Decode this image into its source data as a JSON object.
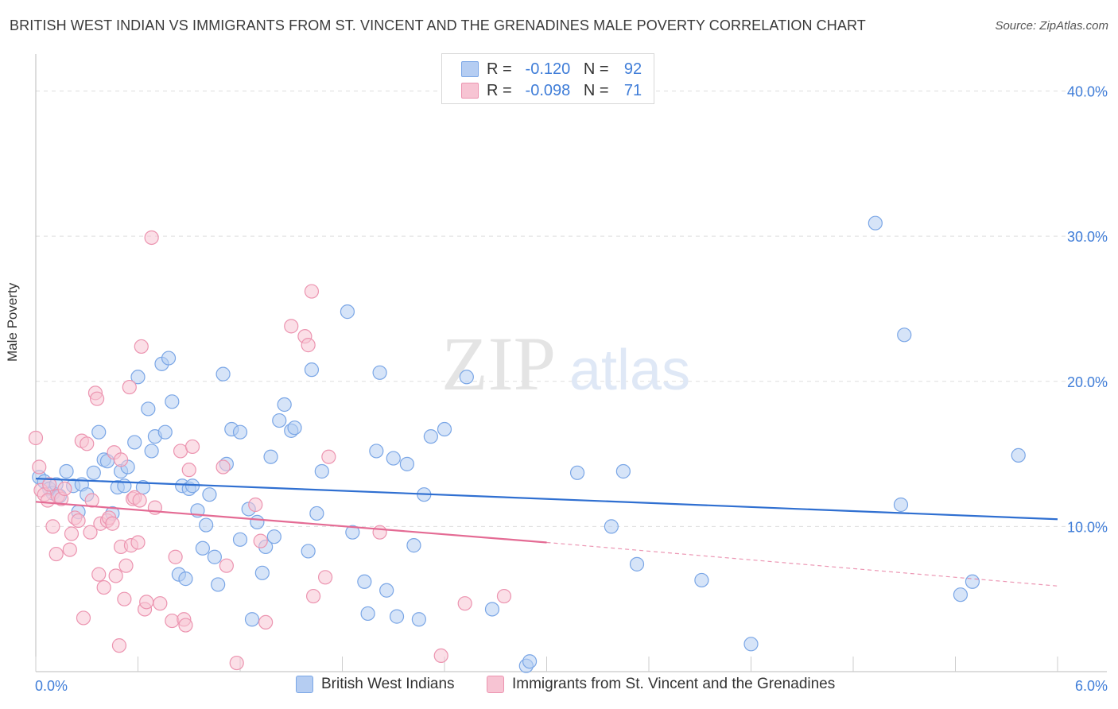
{
  "title": "BRITISH WEST INDIAN VS IMMIGRANTS FROM ST. VINCENT AND THE GRENADINES MALE POVERTY CORRELATION CHART",
  "source": "Source: ZipAtlas.com",
  "watermark": {
    "zip": "ZIP",
    "atlas": "atlas"
  },
  "legend_top": {
    "rows": [
      {
        "r_label": "R =",
        "r_value": "-0.120",
        "n_label": "N =",
        "n_value": "92"
      },
      {
        "r_label": "R =",
        "r_value": "-0.098",
        "n_label": "N =",
        "n_value": "71"
      }
    ]
  },
  "legend_bottom": {
    "items": [
      "British West Indians",
      "Immigrants from St. Vincent and the Grenadines"
    ]
  },
  "colors": {
    "blue_fill": "#b5cdf2",
    "blue_stroke": "#7aa6e6",
    "blue_line": "#2f6fd1",
    "pink_fill": "#f7c4d3",
    "pink_stroke": "#ec94b0",
    "pink_line": "#e46b94",
    "tick_text": "#3f7dd8"
  },
  "chart_data": {
    "type": "scatter",
    "title": "BRITISH WEST INDIAN VS IMMIGRANTS FROM ST. VINCENT AND THE GRENADINES MALE POVERTY CORRELATION CHART",
    "xlabel": "",
    "ylabel": "Male Poverty",
    "xlim": [
      0,
      6.0
    ],
    "ylim": [
      0,
      42
    ],
    "x_tick_labels": [
      "0.0%",
      "6.0%"
    ],
    "y_ticks": [
      10,
      20,
      30,
      40
    ],
    "y_tick_labels": [
      "10.0%",
      "20.0%",
      "30.0%",
      "40.0%"
    ],
    "grid": true,
    "legend": "top-center",
    "series": [
      {
        "name": "British West Indians",
        "r": -0.12,
        "n": 92,
        "trend": {
          "x": [
            0,
            6.0
          ],
          "y": [
            13.3,
            10.5
          ]
        },
        "points": [
          [
            0.02,
            13.4
          ],
          [
            0.05,
            13.1
          ],
          [
            0.08,
            12.6
          ],
          [
            0.1,
            12.3
          ],
          [
            0.12,
            12.9
          ],
          [
            0.14,
            12.1
          ],
          [
            0.18,
            13.8
          ],
          [
            0.22,
            12.8
          ],
          [
            0.25,
            11.0
          ],
          [
            0.27,
            12.9
          ],
          [
            0.3,
            12.2
          ],
          [
            0.34,
            13.7
          ],
          [
            0.37,
            16.5
          ],
          [
            0.4,
            14.6
          ],
          [
            0.42,
            14.5
          ],
          [
            0.45,
            10.9
          ],
          [
            0.48,
            12.7
          ],
          [
            0.5,
            13.8
          ],
          [
            0.52,
            12.8
          ],
          [
            0.54,
            14.1
          ],
          [
            0.58,
            15.8
          ],
          [
            0.6,
            20.3
          ],
          [
            0.63,
            12.7
          ],
          [
            0.66,
            18.1
          ],
          [
            0.68,
            15.2
          ],
          [
            0.7,
            16.2
          ],
          [
            0.74,
            21.2
          ],
          [
            0.76,
            16.5
          ],
          [
            0.78,
            21.6
          ],
          [
            0.8,
            18.6
          ],
          [
            0.84,
            6.7
          ],
          [
            0.86,
            12.8
          ],
          [
            0.88,
            6.4
          ],
          [
            0.9,
            12.6
          ],
          [
            0.92,
            12.8
          ],
          [
            0.95,
            11.1
          ],
          [
            0.98,
            8.5
          ],
          [
            1.0,
            10.1
          ],
          [
            1.02,
            12.2
          ],
          [
            1.05,
            7.9
          ],
          [
            1.07,
            6.0
          ],
          [
            1.1,
            20.5
          ],
          [
            1.12,
            14.3
          ],
          [
            1.15,
            16.7
          ],
          [
            1.2,
            16.5
          ],
          [
            1.2,
            9.1
          ],
          [
            1.25,
            11.2
          ],
          [
            1.27,
            3.6
          ],
          [
            1.3,
            10.3
          ],
          [
            1.33,
            6.8
          ],
          [
            1.35,
            8.6
          ],
          [
            1.38,
            14.8
          ],
          [
            1.4,
            9.3
          ],
          [
            1.43,
            17.3
          ],
          [
            1.46,
            18.4
          ],
          [
            1.5,
            16.6
          ],
          [
            1.52,
            16.8
          ],
          [
            1.6,
            8.3
          ],
          [
            1.62,
            20.8
          ],
          [
            1.65,
            10.9
          ],
          [
            1.68,
            13.8
          ],
          [
            1.83,
            24.8
          ],
          [
            1.86,
            9.6
          ],
          [
            1.93,
            6.2
          ],
          [
            1.95,
            4.0
          ],
          [
            2.0,
            15.2
          ],
          [
            2.02,
            20.6
          ],
          [
            2.06,
            5.6
          ],
          [
            2.1,
            14.7
          ],
          [
            2.12,
            3.8
          ],
          [
            2.18,
            14.3
          ],
          [
            2.22,
            8.7
          ],
          [
            2.25,
            3.6
          ],
          [
            2.28,
            12.2
          ],
          [
            2.32,
            16.2
          ],
          [
            2.4,
            16.7
          ],
          [
            2.53,
            20.3
          ],
          [
            2.68,
            4.3
          ],
          [
            2.88,
            0.4
          ],
          [
            2.9,
            0.7
          ],
          [
            3.18,
            13.7
          ],
          [
            3.38,
            10.0
          ],
          [
            3.45,
            13.8
          ],
          [
            3.53,
            7.4
          ],
          [
            3.91,
            6.3
          ],
          [
            4.2,
            1.9
          ],
          [
            4.93,
            30.9
          ],
          [
            5.08,
            11.5
          ],
          [
            5.1,
            23.2
          ],
          [
            5.43,
            5.3
          ],
          [
            5.5,
            6.2
          ],
          [
            5.77,
            14.9
          ]
        ]
      },
      {
        "name": "Immigrants from St. Vincent and the Grenadines",
        "r": -0.098,
        "n": 71,
        "trend": {
          "x": [
            0,
            3.0
          ],
          "y": [
            11.7,
            8.9
          ]
        },
        "trend_dashed": {
          "x": [
            3.0,
            6.0
          ],
          "y": [
            8.9,
            5.9
          ]
        },
        "points": [
          [
            0.0,
            16.1
          ],
          [
            0.02,
            14.1
          ],
          [
            0.03,
            12.5
          ],
          [
            0.05,
            12.2
          ],
          [
            0.07,
            11.8
          ],
          [
            0.08,
            12.9
          ],
          [
            0.1,
            10.0
          ],
          [
            0.12,
            8.1
          ],
          [
            0.13,
            12.1
          ],
          [
            0.15,
            11.9
          ],
          [
            0.17,
            12.6
          ],
          [
            0.2,
            8.4
          ],
          [
            0.21,
            9.5
          ],
          [
            0.23,
            10.6
          ],
          [
            0.25,
            10.4
          ],
          [
            0.27,
            15.9
          ],
          [
            0.28,
            3.7
          ],
          [
            0.3,
            15.7
          ],
          [
            0.32,
            9.6
          ],
          [
            0.33,
            11.8
          ],
          [
            0.35,
            19.2
          ],
          [
            0.36,
            18.8
          ],
          [
            0.37,
            6.7
          ],
          [
            0.38,
            10.2
          ],
          [
            0.4,
            5.8
          ],
          [
            0.42,
            10.4
          ],
          [
            0.43,
            10.6
          ],
          [
            0.45,
            10.2
          ],
          [
            0.46,
            15.1
          ],
          [
            0.47,
            6.6
          ],
          [
            0.49,
            1.8
          ],
          [
            0.5,
            8.6
          ],
          [
            0.5,
            14.6
          ],
          [
            0.52,
            5.0
          ],
          [
            0.53,
            7.3
          ],
          [
            0.55,
            19.6
          ],
          [
            0.56,
            8.7
          ],
          [
            0.57,
            11.9
          ],
          [
            0.58,
            12.0
          ],
          [
            0.6,
            8.9
          ],
          [
            0.61,
            11.8
          ],
          [
            0.62,
            22.4
          ],
          [
            0.64,
            4.3
          ],
          [
            0.65,
            4.8
          ],
          [
            0.68,
            29.9
          ],
          [
            0.7,
            11.3
          ],
          [
            0.73,
            4.7
          ],
          [
            0.8,
            3.5
          ],
          [
            0.82,
            7.9
          ],
          [
            0.85,
            15.2
          ],
          [
            0.87,
            3.6
          ],
          [
            0.88,
            3.2
          ],
          [
            0.9,
            13.9
          ],
          [
            0.92,
            15.5
          ],
          [
            1.1,
            14.1
          ],
          [
            1.12,
            7.3
          ],
          [
            1.18,
            0.6
          ],
          [
            1.29,
            11.5
          ],
          [
            1.32,
            9.0
          ],
          [
            1.35,
            3.4
          ],
          [
            1.5,
            23.8
          ],
          [
            1.58,
            23.1
          ],
          [
            1.6,
            22.5
          ],
          [
            1.62,
            26.2
          ],
          [
            1.63,
            5.2
          ],
          [
            1.7,
            6.5
          ],
          [
            1.72,
            14.8
          ],
          [
            2.38,
            1.1
          ],
          [
            2.52,
            4.7
          ],
          [
            2.75,
            5.2
          ],
          [
            2.02,
            9.6
          ]
        ]
      }
    ]
  }
}
